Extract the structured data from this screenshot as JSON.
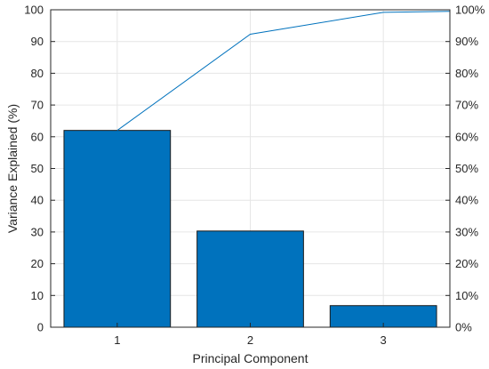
{
  "chart_data": {
    "type": "bar",
    "categories": [
      "1",
      "2",
      "3"
    ],
    "values": [
      62,
      30.3,
      6.8
    ],
    "cumulative_line": {
      "x": [
        "1",
        "2",
        "3"
      ],
      "values": [
        62,
        92.3,
        99.2
      ],
      "extends_to_right_edge": true,
      "final_value": 99.5
    },
    "xlabel": "Principal Component",
    "ylabel": "Variance Explained (%)",
    "ylim": [
      0,
      100
    ],
    "y_ticks": [
      0,
      10,
      20,
      30,
      40,
      50,
      60,
      70,
      80,
      90,
      100
    ],
    "y_right_ticks": [
      "0%",
      "10%",
      "20%",
      "30%",
      "40%",
      "50%",
      "60%",
      "70%",
      "80%",
      "90%",
      "100%"
    ],
    "grid": true,
    "colors": {
      "bar_fill": "#0072bd",
      "bar_edge": "#1a1a1a",
      "line": "#0072bd",
      "axis": "#262626",
      "grid": "#e6e6e6"
    }
  }
}
